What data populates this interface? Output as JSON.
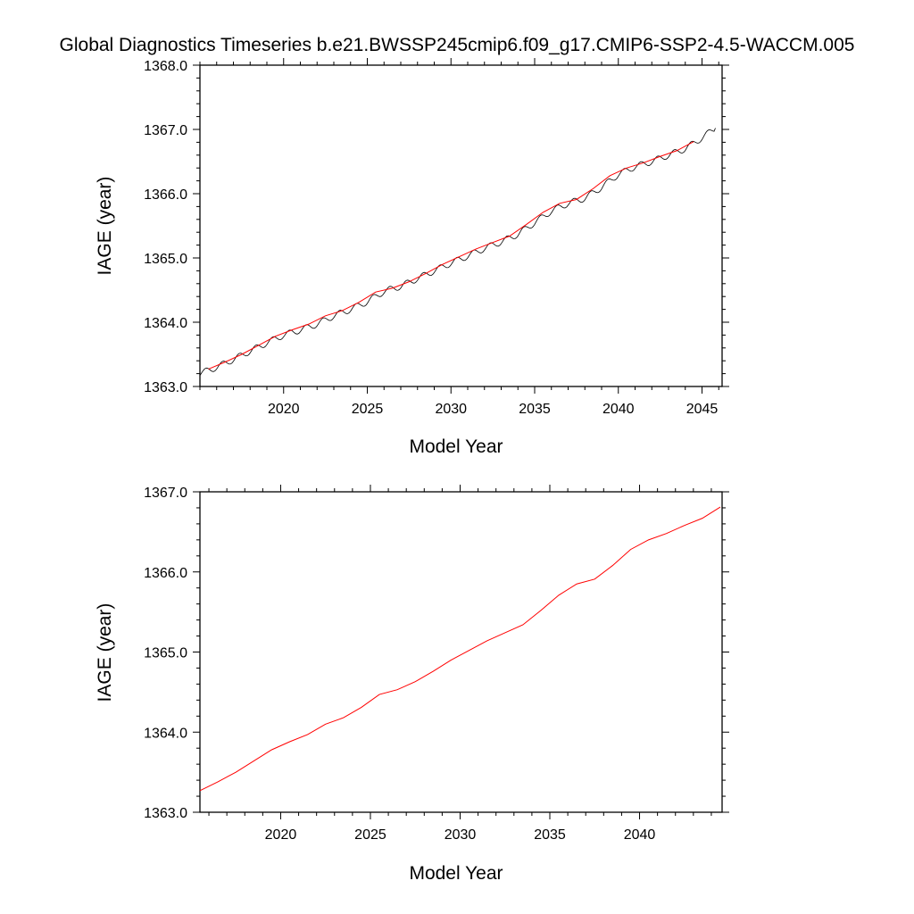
{
  "figure": {
    "title": "Global Diagnostics Timeseries b.e21.BWSSP245cmip6.f09_g17.CMIP6-SSP2-4.5-WACCM.005"
  },
  "chart_data": [
    {
      "type": "line",
      "xlabel": "Model Year",
      "ylabel": "IAGE (year)",
      "xlim": [
        2015,
        2046.2
      ],
      "ylim": [
        1363.0,
        1368.0
      ],
      "x_ticks": [
        2020,
        2025,
        2030,
        2035,
        2040,
        2045
      ],
      "x_tick_labels": [
        "2020",
        "2025",
        "2030",
        "2035",
        "2040",
        "2045"
      ],
      "y_ticks": [
        1363.0,
        1364.0,
        1365.0,
        1366.0,
        1367.0,
        1368.0
      ],
      "y_tick_labels": [
        "1363.0",
        "1364.0",
        "1365.0",
        "1366.0",
        "1367.0",
        "1368.0"
      ],
      "grid": false,
      "legend": "none",
      "seasonal_amplitude": 0.05,
      "series": [
        {
          "style": "monthly",
          "color": "#000000",
          "x": [
            2015.0,
            2016.0,
            2017.0,
            2018.0,
            2019.0,
            2020.0,
            2021.0,
            2022.0,
            2023.0,
            2024.0,
            2025.0,
            2026.0,
            2027.0,
            2028.0,
            2029.0,
            2030.0,
            2031.0,
            2032.0,
            2033.0,
            2034.0,
            2035.0,
            2036.0,
            2037.0,
            2038.0,
            2039.0,
            2040.0,
            2041.0,
            2042.0,
            2043.0,
            2044.0,
            2045.0,
            2045.8
          ],
          "values": [
            1363.2,
            1363.3,
            1363.42,
            1363.55,
            1363.68,
            1363.8,
            1363.88,
            1363.97,
            1364.1,
            1364.2,
            1364.32,
            1364.48,
            1364.56,
            1364.68,
            1364.8,
            1364.92,
            1365.03,
            1365.15,
            1365.25,
            1365.37,
            1365.55,
            1365.73,
            1365.85,
            1365.93,
            1366.1,
            1366.3,
            1366.42,
            1366.5,
            1366.6,
            1366.7,
            1366.87,
            1367.02
          ]
        },
        {
          "style": "annual",
          "color": "#ff0000",
          "x": [
            2015.5,
            2016.5,
            2017.5,
            2018.5,
            2019.5,
            2020.5,
            2021.5,
            2022.5,
            2023.5,
            2024.5,
            2025.5,
            2026.5,
            2027.5,
            2028.5,
            2029.5,
            2030.5,
            2031.5,
            2032.5,
            2033.5,
            2034.5,
            2035.5,
            2036.5,
            2037.5,
            2038.5,
            2039.5,
            2040.5,
            2041.5,
            2042.5,
            2043.5,
            2044.5
          ],
          "values": [
            1363.27,
            1363.38,
            1363.5,
            1363.64,
            1363.78,
            1363.88,
            1363.97,
            1364.1,
            1364.18,
            1364.31,
            1364.47,
            1364.53,
            1364.63,
            1364.76,
            1364.9,
            1365.02,
            1365.14,
            1365.24,
            1365.34,
            1365.52,
            1365.71,
            1365.85,
            1365.91,
            1366.08,
            1366.28,
            1366.4,
            1366.48,
            1366.58,
            1366.67,
            1366.81
          ]
        }
      ]
    },
    {
      "type": "line",
      "xlabel": "Model Year",
      "ylabel": "IAGE (year)",
      "xlim": [
        2015.5,
        2044.6
      ],
      "ylim": [
        1363.0,
        1367.0
      ],
      "x_ticks": [
        2020,
        2025,
        2030,
        2035,
        2040
      ],
      "x_tick_labels": [
        "2020",
        "2025",
        "2030",
        "2035",
        "2040"
      ],
      "y_ticks": [
        1363.0,
        1364.0,
        1365.0,
        1366.0,
        1367.0
      ],
      "y_tick_labels": [
        "1363.0",
        "1364.0",
        "1365.0",
        "1366.0",
        "1367.0"
      ],
      "grid": false,
      "legend": "none",
      "series": [
        {
          "style": "annual",
          "color": "#ff0000",
          "x": [
            2015.5,
            2016.5,
            2017.5,
            2018.5,
            2019.5,
            2020.5,
            2021.5,
            2022.5,
            2023.5,
            2024.5,
            2025.5,
            2026.5,
            2027.5,
            2028.5,
            2029.5,
            2030.5,
            2031.5,
            2032.5,
            2033.5,
            2034.5,
            2035.5,
            2036.5,
            2037.5,
            2038.5,
            2039.5,
            2040.5,
            2041.5,
            2042.5,
            2043.5,
            2044.5
          ],
          "values": [
            1363.27,
            1363.38,
            1363.5,
            1363.64,
            1363.78,
            1363.88,
            1363.97,
            1364.1,
            1364.18,
            1364.31,
            1364.47,
            1364.53,
            1364.63,
            1364.76,
            1364.9,
            1365.02,
            1365.14,
            1365.24,
            1365.34,
            1365.52,
            1365.71,
            1365.85,
            1365.91,
            1366.08,
            1366.28,
            1366.4,
            1366.48,
            1366.58,
            1366.67,
            1366.81
          ]
        }
      ]
    }
  ]
}
